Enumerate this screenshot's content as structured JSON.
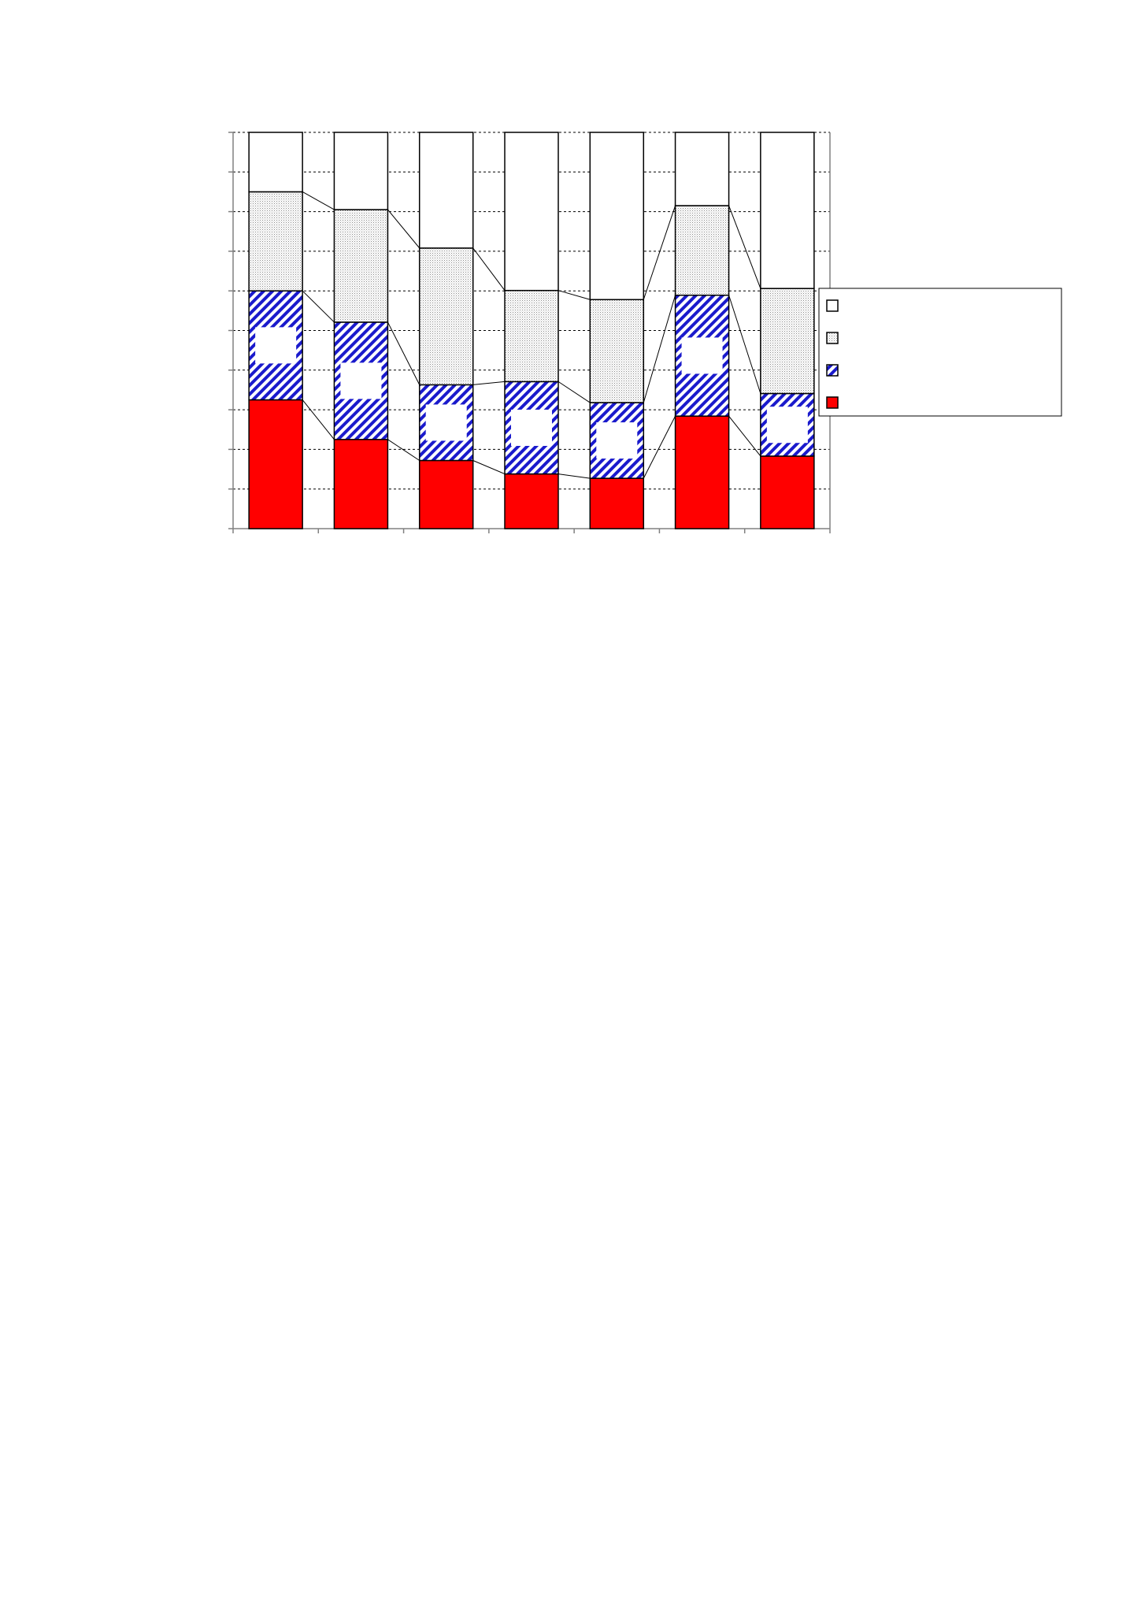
{
  "chart_data": {
    "type": "bar",
    "stacked": true,
    "percent_stacked": true,
    "title": "",
    "xlabel": "",
    "ylabel": "",
    "ylim": [
      0,
      100
    ],
    "grid": true,
    "legend_position": "right",
    "connector_lines": true,
    "categories": [
      "",
      "",
      "",
      "",
      "",
      "",
      ""
    ],
    "series": [
      {
        "pattern": "solid",
        "color": "#ff0000",
        "values": [
          32.5,
          22.5,
          17.2,
          13.8,
          12.7,
          28.4,
          18.3
        ]
      },
      {
        "pattern": "hatch",
        "color": "#1a1acc",
        "values": [
          27.5,
          29.6,
          19.1,
          23.3,
          19.1,
          30.5,
          15.8
        ]
      },
      {
        "pattern": "dots",
        "color": "#b0b0b0",
        "values": [
          25.0,
          28.4,
          34.5,
          23.0,
          26.0,
          22.6,
          26.5
        ]
      },
      {
        "pattern": "none",
        "color": "#ffffff",
        "values": [
          15.0,
          19.5,
          29.2,
          39.9,
          42.2,
          18.5,
          39.4
        ]
      }
    ]
  }
}
